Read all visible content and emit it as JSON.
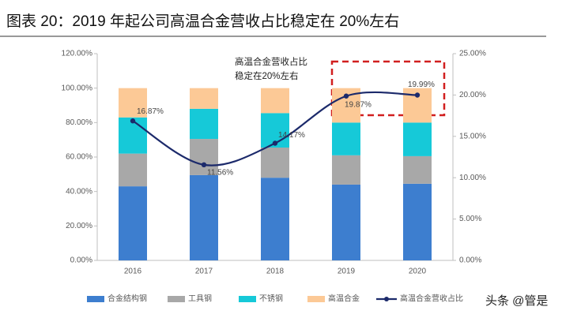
{
  "title": "图表 20：2019 年起公司高温合金营收占比稳定在 20%左右",
  "watermark": "头条 @管是",
  "chart_data": {
    "type": "bar-line",
    "annotation": [
      "高温合金营收占比",
      "稳定在20%左右"
    ],
    "categories": [
      "2016",
      "2017",
      "2018",
      "2019",
      "2020"
    ],
    "series": [
      {
        "name": "合金结构钢",
        "color": "#3d7ecf",
        "values": [
          43,
          49.5,
          48,
          44,
          44.5
        ]
      },
      {
        "name": "工具钢",
        "color": "#a8a8a8",
        "values": [
          19,
          21,
          17.5,
          17,
          16
        ]
      },
      {
        "name": "不锈钢",
        "color": "#16c9d8",
        "values": [
          21,
          17.5,
          20,
          19,
          19.5
        ]
      },
      {
        "name": "高温合金",
        "color": "#fcc996",
        "values": [
          17,
          12,
          14.5,
          20,
          20
        ]
      },
      {
        "name": "高温合金营收占比",
        "color": "#1c2a6b",
        "axis": "y2",
        "values": [
          16.87,
          11.56,
          14.17,
          19.87,
          19.99
        ],
        "value_labels": [
          "16.87%",
          "11.56%",
          "14.17%",
          "19.87%",
          "19.99%"
        ]
      }
    ],
    "ylim": [
      0,
      120
    ],
    "yticks": [
      {
        "value": 0,
        "label": "0.00%"
      },
      {
        "value": 20,
        "label": "20.00%"
      },
      {
        "value": 40,
        "label": "40.00%"
      },
      {
        "value": 60,
        "label": "60.00%"
      },
      {
        "value": 80,
        "label": "80.00%"
      },
      {
        "value": 100,
        "label": "100.00%"
      },
      {
        "value": 120,
        "label": "120.00%"
      }
    ],
    "y2lim": [
      0,
      25
    ],
    "y2ticks": [
      {
        "value": 0,
        "label": "0.00%"
      },
      {
        "value": 5,
        "label": "5.00%"
      },
      {
        "value": 10,
        "label": "10.00%"
      },
      {
        "value": 15,
        "label": "15.00%"
      },
      {
        "value": 20,
        "label": "20.00%"
      },
      {
        "value": 25,
        "label": "25.00%"
      }
    ]
  }
}
